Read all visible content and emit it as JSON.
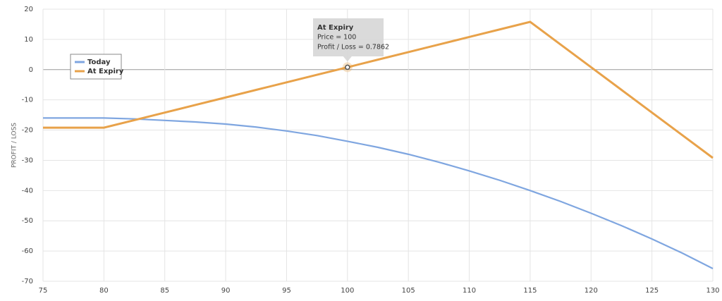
{
  "chart_data": {
    "type": "line",
    "y_label": "PROFIT / LOSS",
    "x": [
      75,
      77.5,
      80,
      82.5,
      85,
      87.5,
      90,
      92.5,
      95,
      97.5,
      100,
      102.5,
      105,
      107.5,
      110,
      112.5,
      115,
      117.5,
      120,
      122.5,
      125,
      127.5,
      130
    ],
    "series": [
      {
        "name": "Today",
        "color": "#7fa6e0",
        "values": [
          -16,
          -16,
          -16,
          -16.3,
          -16.8,
          -17.3,
          -18,
          -19,
          -20.3,
          -21.8,
          -23.7,
          -25.7,
          -28,
          -30.6,
          -33.5,
          -36.6,
          -40,
          -43.6,
          -47.5,
          -51.6,
          -56,
          -60.7,
          -65.8
        ]
      },
      {
        "name": "At Expiry",
        "color": "#e8a24a",
        "values": [
          -19.2,
          -19.2,
          -19.2,
          -16.7,
          -14.2,
          -11.7,
          -9.2,
          -6.7,
          -4.2,
          -1.7,
          0.7862,
          3.3,
          5.8,
          8.3,
          10.8,
          13.3,
          15.8,
          8.3,
          0.8,
          -6.7,
          -14.2,
          -21.7,
          -29.2
        ]
      }
    ],
    "xlim": [
      75,
      130
    ],
    "xticks": [
      75,
      80,
      85,
      90,
      95,
      100,
      105,
      110,
      115,
      120,
      125,
      130
    ],
    "ylim": [
      -70,
      20
    ],
    "yticks": [
      20,
      10,
      0,
      -10,
      -20,
      -30,
      -40,
      -50,
      -60,
      -70
    ],
    "grid": true,
    "tooltip": {
      "title": "At Expiry",
      "lines": [
        "Price = 100",
        "Profit / Loss = 0.7862"
      ],
      "x": 100,
      "y": 0.7862
    }
  }
}
